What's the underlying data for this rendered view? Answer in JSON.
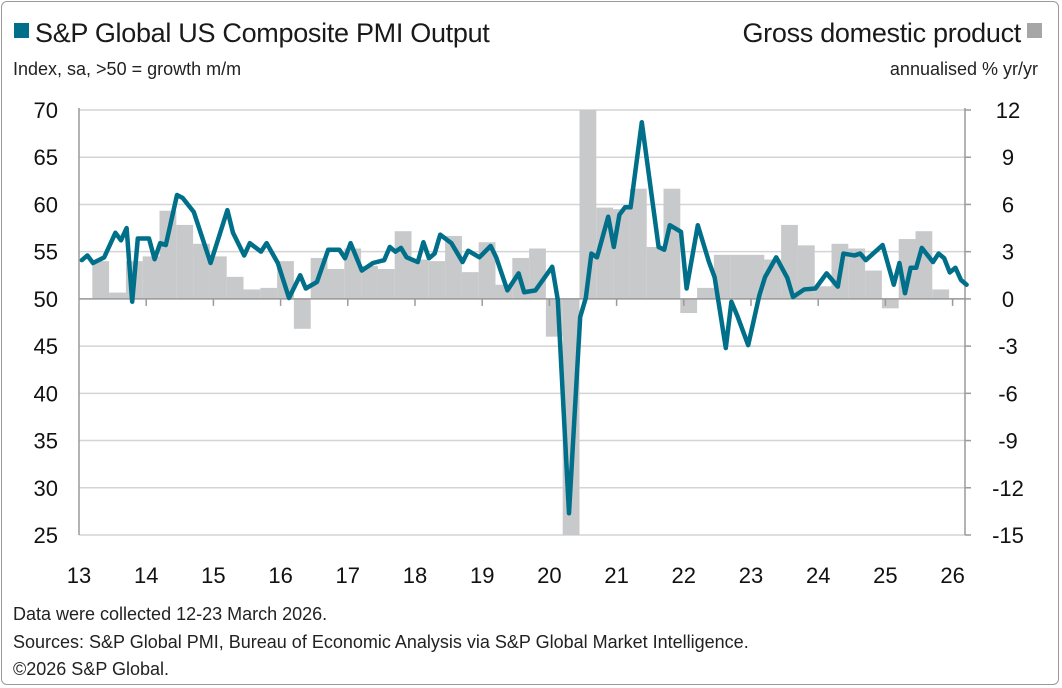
{
  "chart_data": {
    "type": "bar+line",
    "legend": {
      "left": {
        "label": "S&P Global US Composite PMI Output",
        "unit": "Index, sa, >50 = growth m/m",
        "color": "#006f8a"
      },
      "right": {
        "label": "Gross domestic product",
        "unit": "annualised % yr/yr",
        "color": "#a6a6a6"
      }
    },
    "left_axis": {
      "range": [
        25,
        70
      ],
      "ticks": [
        "70",
        "65",
        "60",
        "55",
        "50",
        "45",
        "40",
        "35",
        "30",
        "25"
      ]
    },
    "right_axis": {
      "range": [
        -15,
        12
      ],
      "ticks": [
        "12",
        "9",
        "6",
        "3",
        "0",
        "-3",
        "-6",
        "-9",
        "-12",
        "-15"
      ]
    },
    "x_ticks": [
      "13",
      "14",
      "15",
      "16",
      "17",
      "18",
      "19",
      "20",
      "21",
      "22",
      "23",
      "24",
      "25",
      "26"
    ],
    "grid": "horizontal",
    "pmi_series": [
      [
        "2013-01",
        54.1
      ],
      [
        "2013-02",
        54.6
      ],
      [
        "2013-03",
        53.8
      ],
      [
        "2013-05",
        54.4
      ],
      [
        "2013-07",
        57.0
      ],
      [
        "2013-08",
        56.2
      ],
      [
        "2013-09",
        57.5
      ],
      [
        "2013-10",
        49.7
      ],
      [
        "2013-11",
        56.4
      ],
      [
        "2014-01",
        56.4
      ],
      [
        "2014-02",
        54.2
      ],
      [
        "2014-03",
        55.9
      ],
      [
        "2014-04",
        55.7
      ],
      [
        "2014-06",
        61.0
      ],
      [
        "2014-07",
        60.7
      ],
      [
        "2014-09",
        59.2
      ],
      [
        "2014-12",
        53.8
      ],
      [
        "2015-03",
        59.4
      ],
      [
        "2015-04",
        57.0
      ],
      [
        "2015-06",
        54.6
      ],
      [
        "2015-07",
        55.9
      ],
      [
        "2015-09",
        55.0
      ],
      [
        "2015-10",
        55.9
      ],
      [
        "2015-12",
        53.8
      ],
      [
        "2016-02",
        50.1
      ],
      [
        "2016-04",
        52.5
      ],
      [
        "2016-05",
        51.1
      ],
      [
        "2016-07",
        51.8
      ],
      [
        "2016-09",
        55.2
      ],
      [
        "2016-11",
        55.2
      ],
      [
        "2016-12",
        54.3
      ],
      [
        "2017-01",
        55.9
      ],
      [
        "2017-03",
        53.0
      ],
      [
        "2017-05",
        53.8
      ],
      [
        "2017-07",
        54.1
      ],
      [
        "2017-08",
        55.5
      ],
      [
        "2017-09",
        55.0
      ],
      [
        "2017-10",
        55.4
      ],
      [
        "2017-11",
        54.4
      ],
      [
        "2018-01",
        53.9
      ],
      [
        "2018-02",
        56.0
      ],
      [
        "2018-03",
        54.3
      ],
      [
        "2018-04",
        54.8
      ],
      [
        "2018-05",
        56.8
      ],
      [
        "2018-07",
        55.9
      ],
      [
        "2018-09",
        53.9
      ],
      [
        "2018-10",
        55.1
      ],
      [
        "2018-12",
        54.4
      ],
      [
        "2019-02",
        55.6
      ],
      [
        "2019-03",
        54.4
      ],
      [
        "2019-05",
        50.9
      ],
      [
        "2019-07",
        52.7
      ],
      [
        "2019-08",
        50.7
      ],
      [
        "2019-10",
        50.9
      ],
      [
        "2020-01",
        53.4
      ],
      [
        "2020-02",
        49.9
      ],
      [
        "2020-04",
        27.3
      ],
      [
        "2020-06",
        48.1
      ],
      [
        "2020-07",
        50.1
      ],
      [
        "2020-08",
        54.8
      ],
      [
        "2020-09",
        54.4
      ],
      [
        "2020-11",
        58.7
      ],
      [
        "2020-12",
        55.5
      ],
      [
        "2021-01",
        58.9
      ],
      [
        "2021-02",
        59.7
      ],
      [
        "2021-03",
        59.7
      ],
      [
        "2021-05",
        68.7
      ],
      [
        "2021-08",
        55.5
      ],
      [
        "2021-09",
        55.2
      ],
      [
        "2021-10",
        57.8
      ],
      [
        "2021-12",
        57.1
      ],
      [
        "2022-01",
        51.1
      ],
      [
        "2022-03",
        57.8
      ],
      [
        "2022-05",
        53.9
      ],
      [
        "2022-06",
        52.3
      ],
      [
        "2022-08",
        44.8
      ],
      [
        "2022-09",
        49.7
      ],
      [
        "2022-10",
        48.3
      ],
      [
        "2022-12",
        45.1
      ],
      [
        "2023-02",
        50.4
      ],
      [
        "2023-03",
        52.3
      ],
      [
        "2023-05",
        54.4
      ],
      [
        "2023-07",
        52.2
      ],
      [
        "2023-08",
        50.2
      ],
      [
        "2023-10",
        51.0
      ],
      [
        "2023-12",
        51.1
      ],
      [
        "2024-02",
        52.7
      ],
      [
        "2024-04",
        51.3
      ],
      [
        "2024-05",
        54.8
      ],
      [
        "2024-07",
        54.6
      ],
      [
        "2024-08",
        54.8
      ],
      [
        "2024-09",
        54.1
      ],
      [
        "2024-12",
        55.7
      ],
      [
        "2025-02",
        51.5
      ],
      [
        "2025-03",
        53.8
      ],
      [
        "2025-04",
        50.6
      ],
      [
        "2025-05",
        53.3
      ],
      [
        "2025-06",
        53.3
      ],
      [
        "2025-07",
        55.4
      ],
      [
        "2025-09",
        53.9
      ],
      [
        "2025-10",
        54.8
      ],
      [
        "2025-11",
        54.3
      ],
      [
        "2025-12",
        52.8
      ],
      [
        "2026-01",
        53.3
      ],
      [
        "2026-02",
        52.0
      ],
      [
        "2026-03",
        51.5
      ]
    ],
    "gdp_series": [
      [
        "2013-Q2",
        2.4
      ],
      [
        "2013-Q3",
        0.4
      ],
      [
        "2013-Q4",
        2.4
      ],
      [
        "2014-Q1",
        2.7
      ],
      [
        "2014-Q2",
        5.6
      ],
      [
        "2014-Q3",
        4.7
      ],
      [
        "2014-Q4",
        3.5
      ],
      [
        "2015-Q1",
        2.7
      ],
      [
        "2015-Q2",
        1.4
      ],
      [
        "2015-Q3",
        0.6
      ],
      [
        "2015-Q4",
        0.7
      ],
      [
        "2016-Q1",
        2.4
      ],
      [
        "2016-Q2",
        -1.9
      ],
      [
        "2016-Q3",
        2.6
      ],
      [
        "2016-Q4",
        1.9
      ],
      [
        "2017-Q1",
        3.2
      ],
      [
        "2017-Q2",
        2.1
      ],
      [
        "2017-Q3",
        1.9
      ],
      [
        "2017-Q4",
        4.3
      ],
      [
        "2018-Q1",
        2.5
      ],
      [
        "2018-Q2",
        2.4
      ],
      [
        "2018-Q3",
        4.0
      ],
      [
        "2018-Q4",
        1.7
      ],
      [
        "2019-Q1",
        3.6
      ],
      [
        "2019-Q2",
        0.9
      ],
      [
        "2019-Q3",
        2.6
      ],
      [
        "2019-Q4",
        3.2
      ],
      [
        "2020-Q1",
        -2.4
      ],
      [
        "2020-Q2",
        -15
      ],
      [
        "2020-Q3",
        12
      ],
      [
        "2020-Q4",
        5.8
      ],
      [
        "2021-Q1",
        5.7
      ],
      [
        "2021-Q2",
        7.0
      ],
      [
        "2021-Q3",
        3.3
      ],
      [
        "2021-Q4",
        7.0
      ],
      [
        "2022-Q1",
        -0.9
      ],
      [
        "2022-Q2",
        0.7
      ],
      [
        "2022-Q3",
        2.8
      ],
      [
        "2022-Q4",
        2.8
      ],
      [
        "2023-Q1",
        2.8
      ],
      [
        "2023-Q2",
        2.5
      ],
      [
        "2023-Q3",
        4.7
      ],
      [
        "2023-Q4",
        3.4
      ],
      [
        "2024-Q1",
        0.8
      ],
      [
        "2024-Q2",
        3.5
      ],
      [
        "2024-Q3",
        3.2
      ],
      [
        "2024-Q4",
        1.8
      ],
      [
        "2025-Q1",
        -0.6
      ],
      [
        "2025-Q2",
        3.8
      ],
      [
        "2025-Q3",
        4.3
      ],
      [
        "2025-Q4",
        0.6
      ]
    ]
  },
  "footer": {
    "note": "Data were collected 12-23 March 2026.",
    "sources": "Sources: S&P Global PMI, Bureau of Economic Analysis via S&P Global Market Intelligence.",
    "copyright": "©2026 S&P Global."
  }
}
